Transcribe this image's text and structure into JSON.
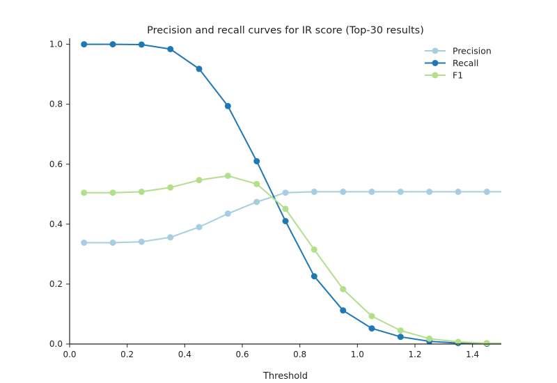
{
  "chart_data": {
    "type": "line",
    "title": "Precision and recall curves for IR score (Top-30 results)",
    "xlabel": "Threshold",
    "ylabel": "",
    "xlim": [
      0.0,
      1.5
    ],
    "ylim": [
      0.0,
      1.02
    ],
    "xticks": [
      "0.0",
      "0.2",
      "0.4",
      "0.6",
      "0.8",
      "1.0",
      "1.2",
      "1.4"
    ],
    "yticks": [
      "0.0",
      "0.2",
      "0.4",
      "0.6",
      "0.8",
      "1.0"
    ],
    "grid": false,
    "legend_position": "top-right",
    "x": [
      0.05,
      0.15,
      0.25,
      0.35,
      0.45,
      0.55,
      0.65,
      0.75,
      0.85,
      0.95,
      1.05,
      1.15,
      1.25,
      1.35,
      1.45
    ],
    "series": [
      {
        "name": "Precision",
        "color": "#a6cee3",
        "values": [
          0.338,
          0.338,
          0.341,
          0.356,
          0.39,
          0.435,
          0.474,
          0.505,
          0.508,
          0.508,
          0.508,
          0.508,
          0.508,
          0.508,
          0.508
        ],
        "extends_to_xmax": true
      },
      {
        "name": "Recall",
        "color": "#1f78b4",
        "values": [
          1.0,
          1.0,
          0.999,
          0.984,
          0.918,
          0.794,
          0.61,
          0.41,
          0.226,
          0.112,
          0.052,
          0.024,
          0.009,
          0.003,
          0.001
        ],
        "extends_to_xmax": true
      },
      {
        "name": "F1",
        "color": "#b2df8a",
        "values": [
          0.505,
          0.505,
          0.508,
          0.522,
          0.547,
          0.561,
          0.534,
          0.451,
          0.315,
          0.183,
          0.093,
          0.045,
          0.018,
          0.007,
          0.003
        ],
        "extends_to_xmax": true
      }
    ]
  }
}
